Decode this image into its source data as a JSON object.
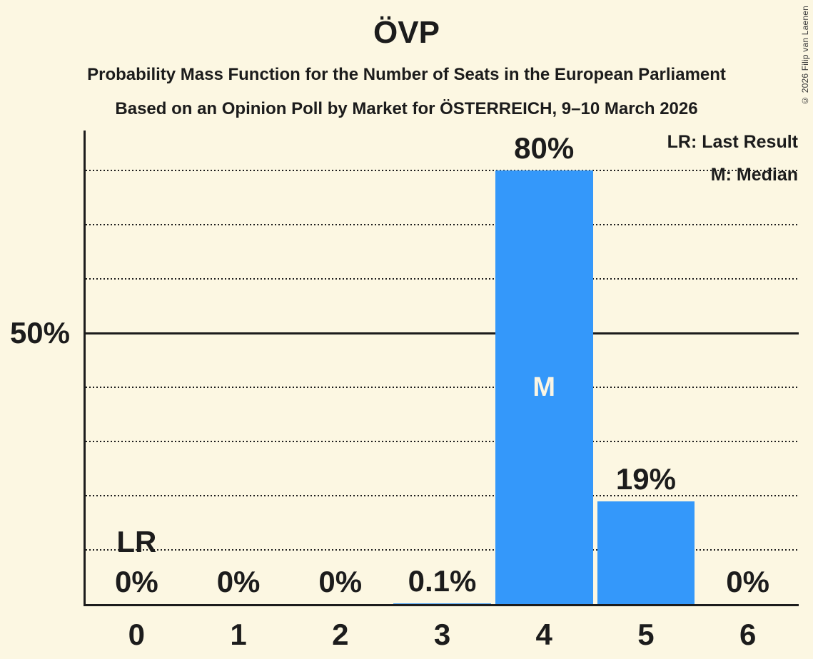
{
  "title": "ÖVP",
  "subtitle1": "Probability Mass Function for the Number of Seats in the European Parliament",
  "subtitle2": "Based on an Opinion Poll by Market for ÖSTERREICH, 9–10 March 2026",
  "copyright": "© 2026 Filip van Laenen",
  "legend": {
    "lr": "LR: Last Result",
    "m": "M: Median"
  },
  "colors": {
    "background": "#FCF7E2",
    "ink": "#1c1c1c",
    "bar": "#3498FA",
    "bar_text": "#FAF5E4"
  },
  "chart_data": {
    "type": "bar",
    "title": "ÖVP",
    "xlabel": "",
    "ylabel": "",
    "categories": [
      "0",
      "1",
      "2",
      "3",
      "4",
      "5",
      "6"
    ],
    "values": [
      0,
      0,
      0,
      0.1,
      80,
      19,
      0
    ],
    "value_labels": [
      "0%",
      "0%",
      "0%",
      "0.1%",
      "80%",
      "19%",
      "0%"
    ],
    "ylim": [
      0,
      87.4
    ],
    "y_axis_label": "50%",
    "y_solid_line_percent": 50,
    "gridlines_percent": [
      10,
      20,
      30,
      40,
      60,
      70,
      80
    ],
    "grid": "horizontal dotted lines, solid line at 50%",
    "legend_position": "top-right",
    "median_category": "4",
    "median_marker": "M",
    "last_result_category": "0",
    "last_result_marker": "LR"
  }
}
